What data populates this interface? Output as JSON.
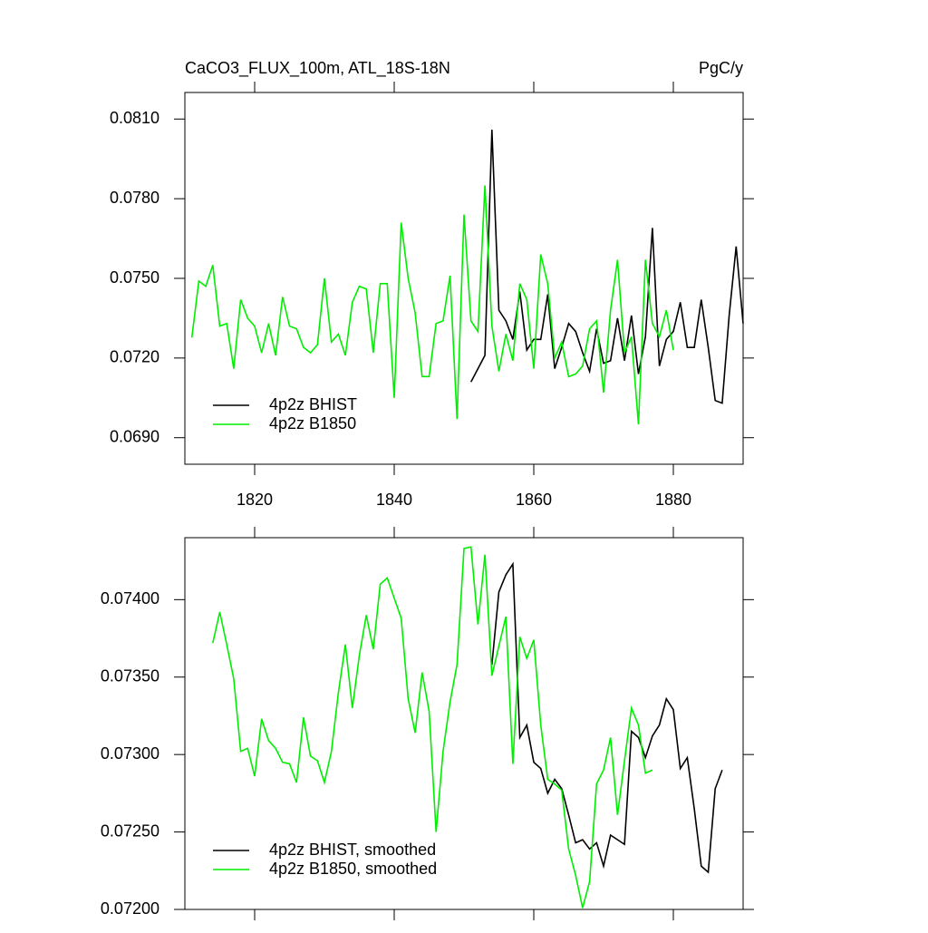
{
  "chart_data": [
    {
      "type": "line",
      "title": "CaCO3_FLUX_100m, ATL_18S-18N",
      "right_title": "PgC/y",
      "xlim": [
        1810,
        1890
      ],
      "xticks": [
        1820,
        1840,
        1860,
        1880
      ],
      "ylim": [
        0.068,
        0.082
      ],
      "yticks": [
        {
          "value": 0.069,
          "label": "0.0690"
        },
        {
          "value": 0.072,
          "label": "0.0720"
        },
        {
          "value": 0.075,
          "label": "0.0750"
        },
        {
          "value": 0.078,
          "label": "0.0780"
        },
        {
          "value": 0.081,
          "label": "0.0810"
        }
      ],
      "legend": "lower left",
      "series": [
        {
          "name": "4p2z BHIST",
          "color": "#000000",
          "x": [
            1851,
            1852,
            1853,
            1854,
            1855,
            1856,
            1857,
            1858,
            1859,
            1860,
            1861,
            1862,
            1863,
            1864,
            1865,
            1866,
            1867,
            1868,
            1869,
            1870,
            1871,
            1872,
            1873,
            1874,
            1875,
            1876,
            1877,
            1878,
            1879,
            1880,
            1881,
            1882,
            1883,
            1884,
            1885,
            1886,
            1887,
            1888,
            1889,
            1890
          ],
          "values": [
            0.0711,
            0.0716,
            0.0721,
            0.0806,
            0.0738,
            0.0734,
            0.0727,
            0.0745,
            0.0723,
            0.0727,
            0.0727,
            0.0744,
            0.0716,
            0.0724,
            0.0733,
            0.073,
            0.0722,
            0.0715,
            0.0731,
            0.0718,
            0.0719,
            0.0735,
            0.0719,
            0.0736,
            0.0714,
            0.0728,
            0.0769,
            0.0717,
            0.0727,
            0.073,
            0.0741,
            0.0724,
            0.0724,
            0.0742,
            0.0724,
            0.0704,
            0.0703,
            0.0736,
            0.0762,
            0.0733
          ]
        },
        {
          "name": "4p2z B1850",
          "color": "#00ee00",
          "x": [
            1811,
            1812,
            1813,
            1814,
            1815,
            1816,
            1817,
            1818,
            1819,
            1820,
            1821,
            1822,
            1823,
            1824,
            1825,
            1826,
            1827,
            1828,
            1829,
            1830,
            1831,
            1832,
            1833,
            1834,
            1835,
            1836,
            1837,
            1838,
            1839,
            1840,
            1841,
            1842,
            1843,
            1844,
            1845,
            1846,
            1847,
            1848,
            1849,
            1850,
            1851,
            1852,
            1853,
            1854,
            1855,
            1856,
            1857,
            1858,
            1859,
            1860,
            1861,
            1862,
            1863,
            1864,
            1865,
            1866,
            1867,
            1868,
            1869,
            1870,
            1871,
            1872,
            1873,
            1874,
            1875,
            1876,
            1877,
            1878,
            1879,
            1880
          ],
          "values": [
            0.07277,
            0.0749,
            0.0747,
            0.0755,
            0.0732,
            0.0733,
            0.0716,
            0.0742,
            0.0735,
            0.0732,
            0.0722,
            0.0733,
            0.0721,
            0.0743,
            0.0732,
            0.0731,
            0.0724,
            0.0722,
            0.0725,
            0.075,
            0.0726,
            0.0729,
            0.0721,
            0.0741,
            0.0747,
            0.0746,
            0.0722,
            0.0748,
            0.0748,
            0.0705,
            0.0771,
            0.075,
            0.0737,
            0.0713,
            0.0713,
            0.0733,
            0.0734,
            0.0751,
            0.0697,
            0.0774,
            0.0734,
            0.073,
            0.0785,
            0.0732,
            0.0715,
            0.0729,
            0.0719,
            0.0748,
            0.0742,
            0.0716,
            0.0759,
            0.0748,
            0.072,
            0.0726,
            0.0713,
            0.0714,
            0.0717,
            0.0731,
            0.0734,
            0.0707,
            0.0738,
            0.0757,
            0.0722,
            0.0728,
            0.0695,
            0.0757,
            0.0733,
            0.0728,
            0.0738,
            0.0723
          ]
        }
      ]
    },
    {
      "type": "line",
      "xlim": [
        1810,
        1890
      ],
      "xticks": [
        1820,
        1840,
        1860,
        1880
      ],
      "show_xtick_labels": false,
      "ylim": [
        0.072,
        0.0744
      ],
      "yticks": [
        {
          "value": 0.072,
          "label": "0.07200"
        },
        {
          "value": 0.0725,
          "label": "0.07250"
        },
        {
          "value": 0.073,
          "label": "0.07300"
        },
        {
          "value": 0.0735,
          "label": "0.07350"
        },
        {
          "value": 0.074,
          "label": "0.07400"
        }
      ],
      "legend": "lower left",
      "series": [
        {
          "name": "4p2z BHIST, smoothed",
          "color": "#000000",
          "x": [
            1854,
            1855,
            1856,
            1857,
            1858,
            1859,
            1860,
            1861,
            1862,
            1863,
            1864,
            1865,
            1866,
            1867,
            1868,
            1869,
            1870,
            1871,
            1872,
            1873,
            1874,
            1875,
            1876,
            1877,
            1878,
            1879,
            1880,
            1881,
            1882,
            1883,
            1884,
            1885,
            1886,
            1887
          ],
          "values": [
            0.07358,
            0.07405,
            0.07416,
            0.07423,
            0.07311,
            0.07319,
            0.07295,
            0.07291,
            0.07275,
            0.07284,
            0.07278,
            0.07261,
            0.07243,
            0.07245,
            0.07239,
            0.07243,
            0.07228,
            0.07248,
            0.07245,
            0.07242,
            0.07315,
            0.07311,
            0.07298,
            0.07312,
            0.07319,
            0.07336,
            0.07329,
            0.07291,
            0.07298,
            0.07265,
            0.07228,
            0.07224,
            0.07278,
            0.0729
          ]
        },
        {
          "name": "4p2z B1850, smoothed",
          "color": "#00ee00",
          "x": [
            1814,
            1815,
            1816,
            1817,
            1818,
            1819,
            1820,
            1821,
            1822,
            1823,
            1824,
            1825,
            1826,
            1827,
            1828,
            1829,
            1830,
            1831,
            1832,
            1833,
            1834,
            1835,
            1836,
            1837,
            1838,
            1839,
            1840,
            1841,
            1842,
            1843,
            1844,
            1845,
            1846,
            1847,
            1848,
            1849,
            1850,
            1851,
            1852,
            1853,
            1854,
            1855,
            1856,
            1857,
            1858,
            1859,
            1860,
            1861,
            1862,
            1863,
            1864,
            1865,
            1866,
            1867,
            1868,
            1869,
            1870,
            1871,
            1872,
            1873,
            1874,
            1875,
            1876,
            1877
          ],
          "values": [
            0.07372,
            0.07392,
            0.07371,
            0.07349,
            0.07302,
            0.07304,
            0.07286,
            0.07323,
            0.07309,
            0.07304,
            0.07295,
            0.07294,
            0.07282,
            0.07324,
            0.07299,
            0.07296,
            0.07282,
            0.07302,
            0.0734,
            0.07371,
            0.0733,
            0.07364,
            0.0739,
            0.07368,
            0.0741,
            0.07414,
            0.07401,
            0.07388,
            0.07336,
            0.07314,
            0.07353,
            0.07328,
            0.0725,
            0.07302,
            0.07334,
            0.07358,
            0.07433,
            0.07434,
            0.07384,
            0.07429,
            0.07351,
            0.0737,
            0.07389,
            0.07294,
            0.07376,
            0.07362,
            0.07374,
            0.07319,
            0.07284,
            0.07281,
            0.07277,
            0.07239,
            0.07222,
            0.07201,
            0.07218,
            0.07281,
            0.0729,
            0.07311,
            0.07261,
            0.07296,
            0.0733,
            0.07319,
            0.07288,
            0.0729
          ]
        }
      ]
    }
  ]
}
